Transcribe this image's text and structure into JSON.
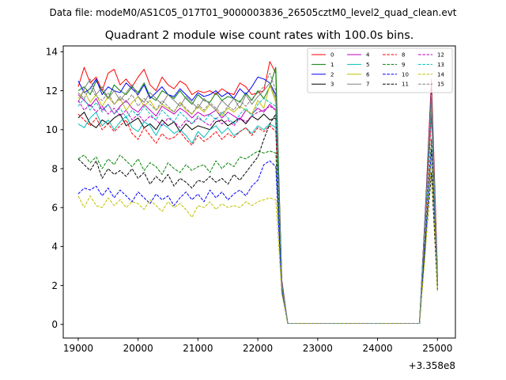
{
  "suptitle": "Data file: modeM0/AS1C05_017T01_9000003836_26505cztM0_level2_quad_clean.evt",
  "chart_data": {
    "type": "line",
    "title": "Quadrant 2 module wise count rates with 100.0s bins.",
    "xlabel": "",
    "ylabel": "",
    "x_offset_label": "+3.358e8",
    "x_offset": 335800000,
    "xlim": [
      18750,
      25300
    ],
    "ylim": [
      -0.7,
      14.3
    ],
    "xticks": [
      19000,
      20000,
      21000,
      22000,
      23000,
      24000,
      25000
    ],
    "xtick_labels": [
      "19000",
      "20000",
      "21000",
      "22000",
      "23000",
      "24000",
      "25000"
    ],
    "yticks": [
      0,
      2,
      4,
      6,
      8,
      10,
      12,
      14
    ],
    "ytick_labels": [
      "0",
      "2",
      "4",
      "6",
      "8",
      "10",
      "12",
      "14"
    ],
    "grid": false,
    "legend_position": "top-right",
    "legend_columns": 4,
    "x": [
      19000,
      19100,
      19200,
      19300,
      19400,
      19500,
      19600,
      19700,
      19800,
      19900,
      20000,
      20100,
      20200,
      20300,
      20400,
      20500,
      20600,
      20700,
      20800,
      20900,
      21000,
      21100,
      21200,
      21300,
      21400,
      21500,
      21600,
      21700,
      21800,
      21900,
      22000,
      22100,
      22200,
      22300,
      22400,
      22500,
      22600,
      22700,
      22800,
      22900,
      23000,
      23100,
      23200,
      23300,
      23400,
      23500,
      23600,
      23700,
      23800,
      23900,
      24000,
      24100,
      24200,
      24300,
      24400,
      24500,
      24600,
      24700,
      24800,
      24900,
      25000
    ],
    "series": [
      {
        "name": "0",
        "color": "#ff0000",
        "dash": "solid",
        "values": [
          12.2,
          13.2,
          12.4,
          12.7,
          12.0,
          12.9,
          13.1,
          12.3,
          12.6,
          12.2,
          12.7,
          13.1,
          12.3,
          12.0,
          12.7,
          12.3,
          12.1,
          12.5,
          12.3,
          11.8,
          12.0,
          11.9,
          12.0,
          11.8,
          12.1,
          11.9,
          11.8,
          12.4,
          12.2,
          11.8,
          11.9,
          12.0,
          13.5,
          12.9,
          2.3,
          0.05,
          0.05,
          0.05,
          0.05,
          0.05,
          0.05,
          0.05,
          0.05,
          0.05,
          0.05,
          0.05,
          0.05,
          0.05,
          0.05,
          0.05,
          0.05,
          0.05,
          0.05,
          0.05,
          0.05,
          0.05,
          0.05,
          0.05,
          6.0,
          12.6,
          2.8
        ]
      },
      {
        "name": "1",
        "color": "#008000",
        "dash": "solid",
        "values": [
          12.0,
          12.2,
          11.8,
          12.5,
          12.0,
          11.6,
          12.3,
          12.0,
          11.8,
          12.2,
          11.9,
          12.4,
          11.7,
          11.5,
          12.0,
          11.8,
          11.6,
          12.0,
          11.6,
          11.3,
          11.8,
          11.5,
          11.4,
          11.9,
          11.5,
          11.7,
          11.6,
          11.4,
          11.9,
          11.5,
          12.0,
          11.6,
          12.2,
          13.2,
          2.2,
          0.05,
          0.05,
          0.05,
          0.05,
          0.05,
          0.05,
          0.05,
          0.05,
          0.05,
          0.05,
          0.05,
          0.05,
          0.05,
          0.05,
          0.05,
          0.05,
          0.05,
          0.05,
          0.05,
          0.05,
          0.05,
          0.05,
          0.05,
          5.8,
          12.0,
          2.5
        ]
      },
      {
        "name": "2",
        "color": "#0000ff",
        "dash": "solid",
        "values": [
          12.5,
          11.9,
          12.1,
          12.6,
          11.8,
          12.2,
          12.0,
          11.9,
          12.4,
          12.1,
          11.8,
          12.3,
          11.6,
          11.9,
          12.2,
          11.8,
          11.7,
          12.1,
          11.8,
          11.5,
          11.9,
          11.7,
          11.8,
          12.0,
          11.7,
          11.9,
          11.6,
          12.1,
          11.8,
          12.2,
          12.7,
          12.6,
          12.4,
          11.8,
          2.2,
          0.05,
          0.05,
          0.05,
          0.05,
          0.05,
          0.05,
          0.05,
          0.05,
          0.05,
          0.05,
          0.05,
          0.05,
          0.05,
          0.05,
          0.05,
          0.05,
          0.05,
          0.05,
          0.05,
          0.05,
          0.05,
          0.05,
          0.05,
          5.9,
          12.1,
          2.4
        ]
      },
      {
        "name": "3",
        "color": "#000000",
        "dash": "solid",
        "values": [
          10.6,
          10.9,
          10.3,
          10.1,
          10.5,
          10.3,
          10.6,
          10.8,
          10.2,
          10.4,
          10.6,
          10.1,
          10.3,
          10.0,
          10.5,
          10.2,
          10.4,
          9.9,
          10.3,
          10.0,
          10.2,
          10.1,
          10.0,
          10.4,
          10.5,
          10.2,
          10.4,
          10.6,
          10.3,
          10.7,
          10.5,
          10.8,
          10.5,
          10.6,
          2.0,
          0.05,
          0.05,
          0.05,
          0.05,
          0.05,
          0.05,
          0.05,
          0.05,
          0.05,
          0.05,
          0.05,
          0.05,
          0.05,
          0.05,
          0.05,
          0.05,
          0.05,
          0.05,
          0.05,
          0.05,
          0.05,
          0.05,
          0.05,
          5.5,
          11.2,
          2.2
        ]
      },
      {
        "name": "4",
        "color": "#bf00bf",
        "dash": "solid",
        "values": [
          11.8,
          11.5,
          11.2,
          11.6,
          11.0,
          11.3,
          10.8,
          11.2,
          11.5,
          11.1,
          10.9,
          11.3,
          11.0,
          10.7,
          11.2,
          11.0,
          10.8,
          11.1,
          10.9,
          10.6,
          10.9,
          10.7,
          10.8,
          11.0,
          10.6,
          10.9,
          10.7,
          10.5,
          11.0,
          10.8,
          11.1,
          10.9,
          11.3,
          11.0,
          2.1,
          0.05,
          0.05,
          0.05,
          0.05,
          0.05,
          0.05,
          0.05,
          0.05,
          0.05,
          0.05,
          0.05,
          0.05,
          0.05,
          0.05,
          0.05,
          0.05,
          0.05,
          0.05,
          0.05,
          0.05,
          0.05,
          0.05,
          0.05,
          5.6,
          11.6,
          2.3
        ]
      },
      {
        "name": "5",
        "color": "#00bfbf",
        "dash": "solid",
        "values": [
          10.3,
          10.1,
          10.6,
          10.9,
          10.2,
          10.5,
          10.0,
          10.4,
          10.7,
          10.1,
          9.9,
          10.4,
          10.2,
          9.7,
          10.3,
          10.1,
          9.8,
          10.0,
          9.7,
          9.3,
          9.9,
          9.6,
          10.0,
          10.2,
          9.8,
          10.1,
          9.7,
          9.9,
          10.1,
          9.8,
          10.2,
          10.0,
          10.3,
          10.1,
          2.0,
          0.05,
          0.05,
          0.05,
          0.05,
          0.05,
          0.05,
          0.05,
          0.05,
          0.05,
          0.05,
          0.05,
          0.05,
          0.05,
          0.05,
          0.05,
          0.05,
          0.05,
          0.05,
          0.05,
          0.05,
          0.05,
          0.05,
          0.05,
          5.3,
          10.9,
          2.1
        ]
      },
      {
        "name": "6",
        "color": "#bfbf00",
        "dash": "solid",
        "values": [
          11.6,
          12.0,
          11.4,
          11.8,
          11.2,
          11.7,
          11.3,
          11.6,
          11.0,
          11.4,
          11.7,
          11.2,
          11.5,
          11.0,
          11.3,
          11.1,
          10.9,
          11.4,
          11.0,
          10.8,
          11.2,
          10.9,
          11.3,
          11.0,
          10.7,
          11.1,
          10.9,
          11.2,
          11.0,
          10.8,
          11.5,
          11.1,
          12.3,
          11.4,
          2.1,
          0.05,
          0.05,
          0.05,
          0.05,
          0.05,
          0.05,
          0.05,
          0.05,
          0.05,
          0.05,
          0.05,
          0.05,
          0.05,
          0.05,
          0.05,
          0.05,
          0.05,
          0.05,
          0.05,
          0.05,
          0.05,
          0.05,
          0.05,
          5.7,
          11.8,
          2.3
        ]
      },
      {
        "name": "7",
        "color": "#808080",
        "dash": "solid",
        "values": [
          11.4,
          12.1,
          12.6,
          11.8,
          12.2,
          11.6,
          12.0,
          11.5,
          11.9,
          12.3,
          11.7,
          11.4,
          11.9,
          11.6,
          11.3,
          11.8,
          11.5,
          11.2,
          11.7,
          11.4,
          11.1,
          11.6,
          11.3,
          11.0,
          11.5,
          11.2,
          11.6,
          11.1,
          11.8,
          11.3,
          11.7,
          12.0,
          12.4,
          11.6,
          2.1,
          0.05,
          0.05,
          0.05,
          0.05,
          0.05,
          0.05,
          0.05,
          0.05,
          0.05,
          0.05,
          0.05,
          0.05,
          0.05,
          0.05,
          0.05,
          0.05,
          0.05,
          0.05,
          0.05,
          0.05,
          0.05,
          0.05,
          0.05,
          5.6,
          11.5,
          2.2
        ]
      },
      {
        "name": "8",
        "color": "#ff0000",
        "dash": "dashed",
        "values": [
          10.8,
          10.5,
          10.2,
          10.6,
          10.0,
          10.3,
          9.9,
          10.2,
          10.5,
          9.8,
          9.5,
          10.1,
          9.7,
          9.3,
          9.8,
          9.5,
          9.6,
          9.9,
          9.5,
          9.2,
          9.7,
          9.4,
          9.6,
          9.9,
          9.5,
          9.8,
          9.6,
          9.9,
          10.1,
          9.7,
          10.1,
          9.9,
          10.2,
          9.9,
          1.9,
          0.05,
          0.05,
          0.05,
          0.05,
          0.05,
          0.05,
          0.05,
          0.05,
          0.05,
          0.05,
          0.05,
          0.05,
          0.05,
          0.05,
          0.05,
          0.05,
          0.05,
          0.05,
          0.05,
          0.05,
          0.05,
          0.05,
          0.05,
          5.2,
          10.7,
          2.1
        ]
      },
      {
        "name": "9",
        "color": "#008000",
        "dash": "dashed",
        "values": [
          8.5,
          8.7,
          8.3,
          8.6,
          8.0,
          8.5,
          8.2,
          8.7,
          8.4,
          8.1,
          8.5,
          7.9,
          8.3,
          8.1,
          7.7,
          8.3,
          8.0,
          7.8,
          8.2,
          7.9,
          8.1,
          8.2,
          7.8,
          8.4,
          8.0,
          8.3,
          8.1,
          8.6,
          8.5,
          8.7,
          8.9,
          8.8,
          8.9,
          8.8,
          1.8,
          0.05,
          0.05,
          0.05,
          0.05,
          0.05,
          0.05,
          0.05,
          0.05,
          0.05,
          0.05,
          0.05,
          0.05,
          0.05,
          0.05,
          0.05,
          0.05,
          0.05,
          0.05,
          0.05,
          0.05,
          0.05,
          0.05,
          0.05,
          4.5,
          9.5,
          2.0
        ]
      },
      {
        "name": "10",
        "color": "#0000ff",
        "dash": "dashed",
        "values": [
          6.7,
          7.0,
          6.9,
          7.1,
          6.6,
          7.0,
          6.5,
          6.9,
          6.6,
          6.3,
          6.8,
          6.5,
          6.2,
          6.7,
          6.4,
          6.6,
          6.1,
          6.5,
          6.8,
          6.4,
          6.7,
          6.3,
          6.9,
          6.5,
          6.8,
          6.4,
          6.7,
          6.9,
          6.6,
          7.1,
          7.4,
          8.2,
          8.4,
          8.1,
          1.7,
          0.05,
          0.05,
          0.05,
          0.05,
          0.05,
          0.05,
          0.05,
          0.05,
          0.05,
          0.05,
          0.05,
          0.05,
          0.05,
          0.05,
          0.05,
          0.05,
          0.05,
          0.05,
          0.05,
          0.05,
          0.05,
          0.05,
          0.05,
          4.2,
          9.0,
          1.9
        ]
      },
      {
        "name": "11",
        "color": "#000000",
        "dash": "dashed",
        "values": [
          8.5,
          8.2,
          7.9,
          8.4,
          7.5,
          8.0,
          7.7,
          7.9,
          7.6,
          8.0,
          7.5,
          7.8,
          7.2,
          7.6,
          7.3,
          7.7,
          7.1,
          7.5,
          7.3,
          7.0,
          7.4,
          7.3,
          7.6,
          7.3,
          7.5,
          7.2,
          7.7,
          7.4,
          7.8,
          8.2,
          8.6,
          9.5,
          10.3,
          10.8,
          1.9,
          0.05,
          0.05,
          0.05,
          0.05,
          0.05,
          0.05,
          0.05,
          0.05,
          0.05,
          0.05,
          0.05,
          0.05,
          0.05,
          0.05,
          0.05,
          0.05,
          0.05,
          0.05,
          0.05,
          0.05,
          0.05,
          0.05,
          0.05,
          4.0,
          7.8,
          1.8
        ]
      },
      {
        "name": "12",
        "color": "#bf00bf",
        "dash": "dashed",
        "values": [
          11.5,
          11.0,
          11.3,
          10.9,
          11.2,
          10.8,
          11.1,
          10.7,
          11.0,
          10.5,
          10.8,
          10.4,
          10.7,
          10.5,
          10.2,
          10.6,
          10.4,
          10.1,
          10.5,
          10.3,
          10.6,
          10.4,
          10.2,
          10.6,
          10.3,
          10.5,
          10.2,
          10.6,
          10.4,
          10.7,
          10.9,
          11.0,
          11.2,
          11.0,
          2.0,
          0.05,
          0.05,
          0.05,
          0.05,
          0.05,
          0.05,
          0.05,
          0.05,
          0.05,
          0.05,
          0.05,
          0.05,
          0.05,
          0.05,
          0.05,
          0.05,
          0.05,
          0.05,
          0.05,
          0.05,
          0.05,
          0.05,
          0.05,
          5.4,
          11.1,
          2.2
        ]
      },
      {
        "name": "13",
        "color": "#00bfbf",
        "dash": "dashed",
        "values": [
          11.2,
          11.6,
          11.0,
          11.4,
          10.9,
          11.3,
          10.8,
          11.1,
          10.6,
          11.0,
          10.7,
          11.2,
          10.8,
          10.5,
          11.0,
          10.7,
          10.4,
          10.9,
          10.6,
          10.3,
          10.7,
          10.4,
          10.8,
          10.5,
          10.9,
          10.6,
          10.3,
          10.8,
          11.1,
          10.7,
          11.3,
          11.6,
          11.4,
          11.2,
          2.0,
          0.05,
          0.05,
          0.05,
          0.05,
          0.05,
          0.05,
          0.05,
          0.05,
          0.05,
          0.05,
          0.05,
          0.05,
          0.05,
          0.05,
          0.05,
          0.05,
          0.05,
          0.05,
          0.05,
          0.05,
          0.05,
          0.05,
          0.05,
          5.5,
          11.3,
          2.2
        ]
      },
      {
        "name": "14",
        "color": "#bfbf00",
        "dash": "dashed",
        "values": [
          6.6,
          6.0,
          6.6,
          6.1,
          6.0,
          6.5,
          6.1,
          6.4,
          6.0,
          6.3,
          6.2,
          5.9,
          6.4,
          6.1,
          5.8,
          6.3,
          6.0,
          6.2,
          5.9,
          5.5,
          6.1,
          6.0,
          6.3,
          5.9,
          6.2,
          6.0,
          6.1,
          6.0,
          6.3,
          6.1,
          6.3,
          6.4,
          6.5,
          6.4,
          1.6,
          0.05,
          0.05,
          0.05,
          0.05,
          0.05,
          0.05,
          0.05,
          0.05,
          0.05,
          0.05,
          0.05,
          0.05,
          0.05,
          0.05,
          0.05,
          0.05,
          0.05,
          0.05,
          0.05,
          0.05,
          0.05,
          0.05,
          0.05,
          3.8,
          8.5,
          1.7
        ]
      },
      {
        "name": "15",
        "color": "#808080",
        "dash": "dashed",
        "values": [
          11.9,
          11.6,
          12.2,
          11.7,
          11.5,
          11.9,
          11.3,
          11.7,
          11.4,
          11.8,
          11.2,
          11.6,
          11.3,
          11.0,
          11.5,
          11.2,
          10.9,
          11.4,
          11.1,
          10.8,
          11.3,
          11.0,
          11.4,
          11.1,
          10.8,
          11.2,
          11.0,
          11.5,
          11.2,
          11.6,
          11.9,
          12.2,
          12.9,
          12.0,
          2.1,
          0.05,
          0.05,
          0.05,
          0.05,
          0.05,
          0.05,
          0.05,
          0.05,
          0.05,
          0.05,
          0.05,
          0.05,
          0.05,
          0.05,
          0.05,
          0.05,
          0.05,
          0.05,
          0.05,
          0.05,
          0.05,
          0.05,
          0.05,
          5.6,
          11.7,
          2.3
        ]
      }
    ]
  }
}
